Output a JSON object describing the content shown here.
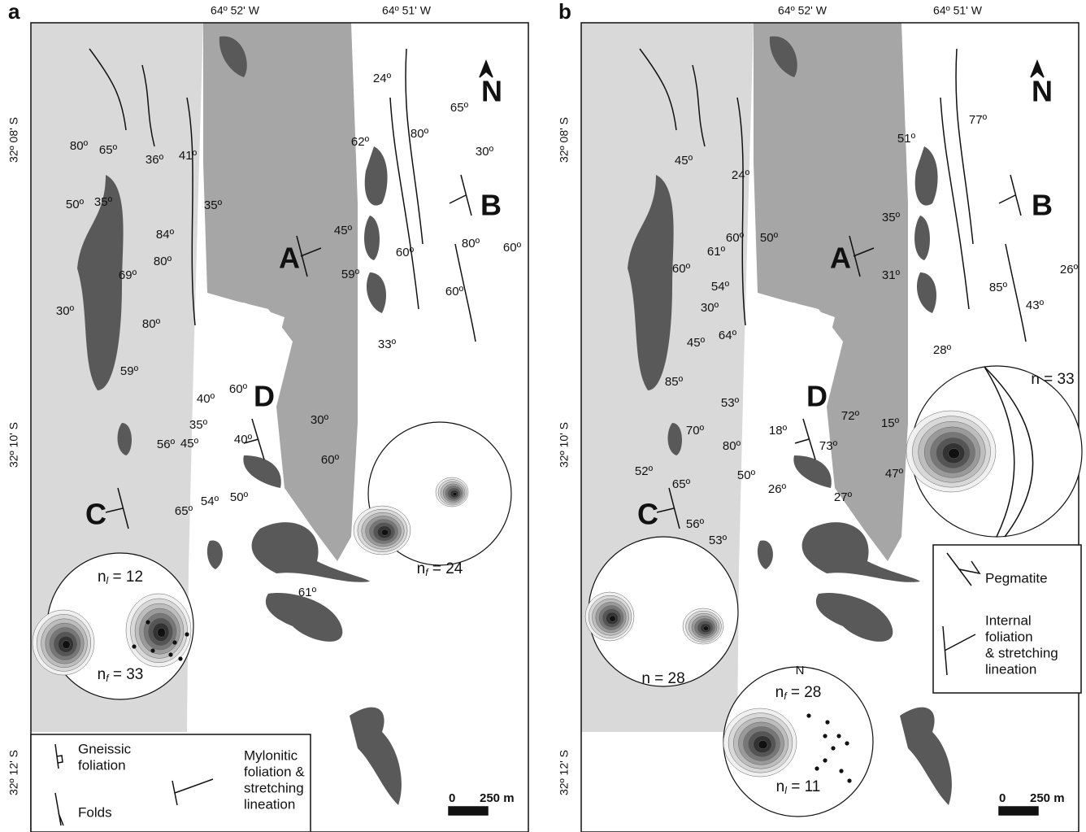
{
  "panels": [
    {
      "letter": "a",
      "longitudes": [
        "64º 52' W",
        "64º 51' W"
      ],
      "latitudes": [
        "32º 08' S",
        "32º 10' S",
        "32º 12' S"
      ],
      "north": "N",
      "domains": [
        "A",
        "B",
        "C",
        "D"
      ],
      "dip_labels": [
        "80º",
        "65º",
        "36º",
        "41º",
        "50º",
        "35º",
        "35º",
        "84º",
        "80º",
        "69º",
        "30º",
        "80º",
        "59º",
        "24º",
        "62º",
        "80º",
        "65º",
        "30º",
        "45º",
        "60º",
        "80º",
        "60º",
        "59º",
        "60º",
        "33º",
        "60º",
        "40º",
        "35º",
        "40º",
        "30º",
        "60º",
        "56º",
        "45º",
        "65º",
        "54º",
        "50º",
        "61º"
      ],
      "stereonets": [
        {
          "labels": [
            {
              "n": "n",
              "sub": "l",
              "rest": " = 12"
            },
            {
              "n": "n",
              "sub": "f",
              "rest": " = 33"
            }
          ]
        },
        {
          "labels": [
            {
              "n": "n",
              "sub": "f",
              "rest": " = 24"
            }
          ]
        }
      ],
      "legend": [
        {
          "lines": [
            "Gneissic",
            "foliation"
          ]
        },
        {
          "lines": [
            "Folds"
          ]
        },
        {
          "lines": [
            "Mylonitic",
            "foliation &",
            "stretching",
            "lineation"
          ]
        }
      ],
      "scale": [
        "0",
        "250 m"
      ]
    },
    {
      "letter": "b",
      "longitudes": [
        "64º 52' W",
        "64º 51' W"
      ],
      "latitudes": [
        "32º 08' S",
        "32º 10' S",
        "32º 12' S"
      ],
      "north": "N",
      "domains": [
        "A",
        "B",
        "C",
        "D"
      ],
      "dip_labels": [
        "45º",
        "24º",
        "50º",
        "61º",
        "60º",
        "60º",
        "54º",
        "30º",
        "45º",
        "64º",
        "85º",
        "53º",
        "70º",
        "52º",
        "65º",
        "80º",
        "18º",
        "50º",
        "26º",
        "56º",
        "53º",
        "72º",
        "73º",
        "15º",
        "47º",
        "27º",
        "51º",
        "77º",
        "35º",
        "31º",
        "85º",
        "26º",
        "43º",
        "28º"
      ],
      "stereonets": [
        {
          "labels": [
            {
              "n": "n",
              "rest": " = 33"
            }
          ]
        },
        {
          "labels": [
            {
              "n": "n",
              "rest": " = 28"
            }
          ]
        },
        {
          "north": "N",
          "labels": [
            {
              "n": "n",
              "sub": "f",
              "rest": " = 28"
            },
            {
              "n": "n",
              "sub": "l",
              "rest": " = 11"
            }
          ]
        }
      ],
      "legend": [
        {
          "lines": [
            "Pegmatite"
          ]
        },
        {
          "lines": [
            "Internal",
            "foliation",
            "& stretching",
            "lineation"
          ]
        }
      ],
      "scale": [
        "0",
        "250 m"
      ]
    }
  ]
}
